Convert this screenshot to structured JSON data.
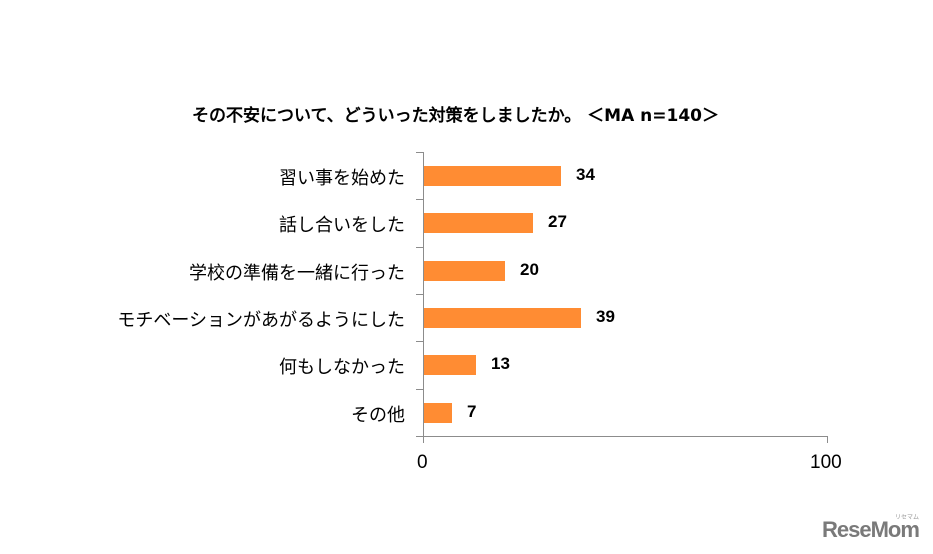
{
  "title": "その不安について、どういった対策をしましたか。 ＜MA n=140＞",
  "colors": {
    "bar": "#FF8C33",
    "axis": "#8c8c8c",
    "text": "#000000",
    "logo": "#7a7a7a"
  },
  "axis": {
    "x_min_label": "0",
    "x_max_label": "100"
  },
  "logo": {
    "text": "ReseMom",
    "sub": "リセマム"
  },
  "chart_data": {
    "type": "bar",
    "orientation": "horizontal",
    "title": "その不安について、どういった対策をしましたか。 ＜MA n=140＞",
    "categories": [
      "習い事を始めた",
      "話し合いをした",
      "学校の準備を一緒に行った",
      "モチベーションがあがるようにした",
      "何もしなかった",
      "その他"
    ],
    "values": [
      34,
      27,
      20,
      39,
      13,
      7
    ],
    "value_labels": [
      "34",
      "27",
      "20",
      "39",
      "13",
      "7"
    ],
    "xlabel": "",
    "ylabel": "",
    "xlim": [
      0,
      100
    ],
    "xticks": [
      "0",
      "100"
    ],
    "grid": false,
    "legend": null,
    "bar_color": "#FF8C33"
  }
}
